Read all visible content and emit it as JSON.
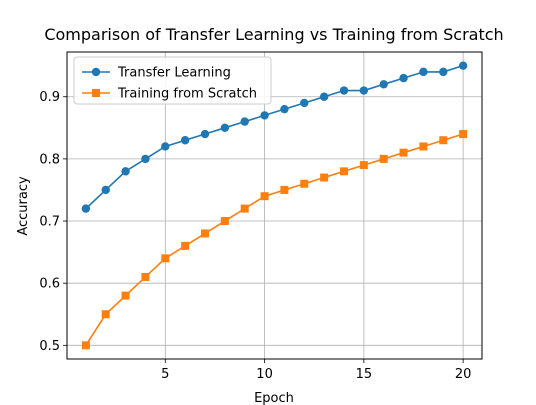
{
  "chart_data": {
    "type": "line",
    "title": "Comparison of Transfer Learning vs Training from Scratch",
    "xlabel": "Epoch",
    "ylabel": "Accuracy",
    "x": [
      1,
      2,
      3,
      4,
      5,
      6,
      7,
      8,
      9,
      10,
      11,
      12,
      13,
      14,
      15,
      16,
      17,
      18,
      19,
      20
    ],
    "xlim": [
      0.05,
      20.95
    ],
    "ylim": [
      0.478,
      0.972
    ],
    "xticks": [
      5,
      10,
      15,
      20
    ],
    "xtick_labels": [
      "5",
      "10",
      "15",
      "20"
    ],
    "yticks": [
      0.5,
      0.6,
      0.7,
      0.8,
      0.9
    ],
    "ytick_labels": [
      "0.5",
      "0.6",
      "0.7",
      "0.8",
      "0.9"
    ],
    "grid": true,
    "legend_position": "top-left",
    "series": [
      {
        "name": "Transfer Learning",
        "color": "#1f77b4",
        "marker": "circle",
        "values": [
          0.72,
          0.75,
          0.78,
          0.8,
          0.82,
          0.83,
          0.84,
          0.85,
          0.86,
          0.87,
          0.88,
          0.89,
          0.9,
          0.91,
          0.91,
          0.92,
          0.93,
          0.94,
          0.94,
          0.95
        ]
      },
      {
        "name": "Training from Scratch",
        "color": "#ff7f0e",
        "marker": "square",
        "values": [
          0.5,
          0.55,
          0.58,
          0.61,
          0.64,
          0.66,
          0.68,
          0.7,
          0.72,
          0.74,
          0.75,
          0.76,
          0.77,
          0.78,
          0.79,
          0.8,
          0.81,
          0.82,
          0.83,
          0.84
        ]
      }
    ]
  }
}
